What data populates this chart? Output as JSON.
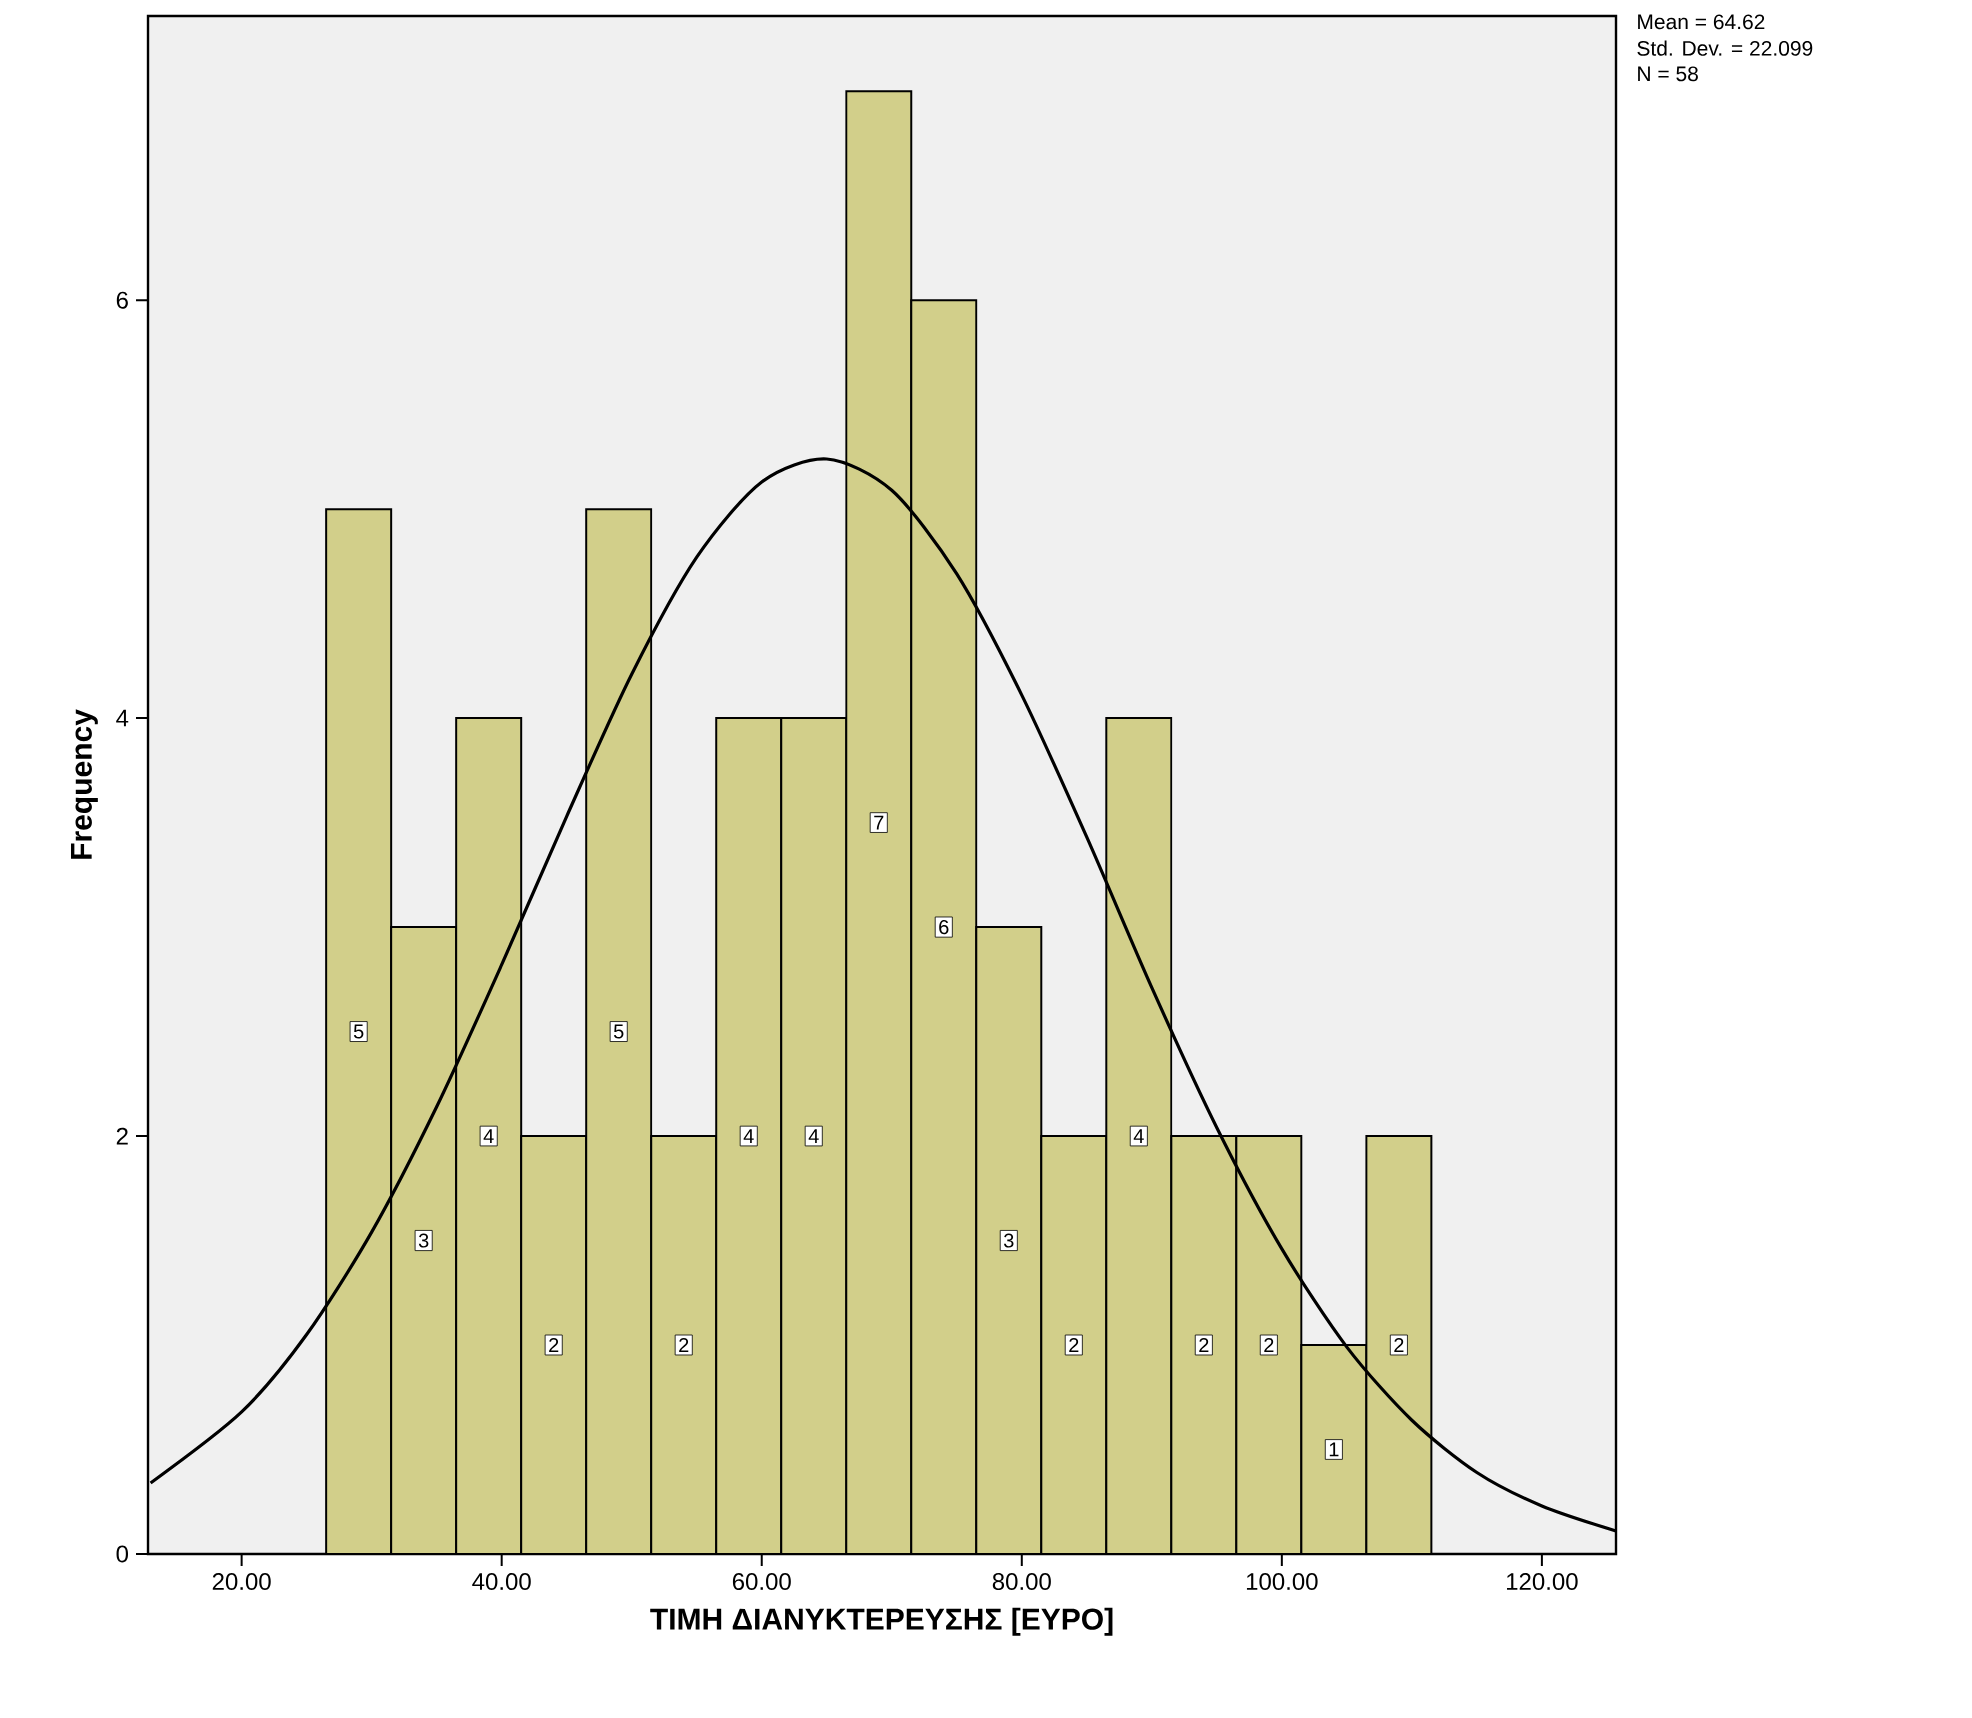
{
  "chart_data": {
    "type": "histogram",
    "xlabel": "ΤΙΜΗ ΔΙΑΝΥΚΤΕΡΕΥΣΗΣ [ΕΥΡΟ]",
    "ylabel": "Frequency",
    "bins": [
      26.5,
      31.5,
      36.5,
      41.5,
      46.5,
      51.5,
      56.5,
      61.5,
      66.5,
      71.5,
      76.5,
      81.5,
      86.5,
      91.5,
      96.5,
      101.5,
      106.5,
      111.5
    ],
    "values": [
      5,
      3,
      4,
      2,
      5,
      2,
      4,
      4,
      7,
      6,
      3,
      2,
      4,
      2,
      2,
      1,
      2
    ],
    "color": "#d2cf8a",
    "value_labels": [
      "5",
      "3",
      "4",
      "2",
      "5",
      "2",
      "4",
      "4",
      "7",
      "6",
      "3",
      "2",
      "4",
      "2",
      "2",
      "1",
      "2"
    ],
    "series": [
      {
        "type": "line",
        "color": "#000000",
        "x": [
          13,
          20,
          25,
          30,
          35,
          40,
          45,
          50,
          55,
          60,
          65,
          70,
          75,
          80,
          85,
          90,
          95,
          100,
          105,
          110,
          115,
          120,
          125.7
        ],
        "values": [
          0.34,
          0.68,
          1.05,
          1.54,
          2.14,
          2.82,
          3.53,
          4.21,
          4.77,
          5.13,
          5.24,
          5.09,
          4.69,
          4.11,
          3.43,
          2.71,
          2.04,
          1.46,
          0.99,
          0.64,
          0.39,
          0.23,
          0.11
        ]
      }
    ],
    "xlim": [
      12.8,
      125.7
    ],
    "ylim": [
      0,
      7.36
    ],
    "xticks": [
      {
        "value": 20,
        "label": "20.00"
      },
      {
        "value": 40,
        "label": "40.00"
      },
      {
        "value": 60,
        "label": "60.00"
      },
      {
        "value": 80,
        "label": "80.00"
      },
      {
        "value": 100,
        "label": "100.00"
      },
      {
        "value": 120,
        "label": "120.00"
      }
    ],
    "yticks": [
      0,
      2,
      4,
      6
    ],
    "annotations": [
      "Mean = 64.62",
      "Std. Dev. = 22.099",
      "N = 58"
    ]
  }
}
